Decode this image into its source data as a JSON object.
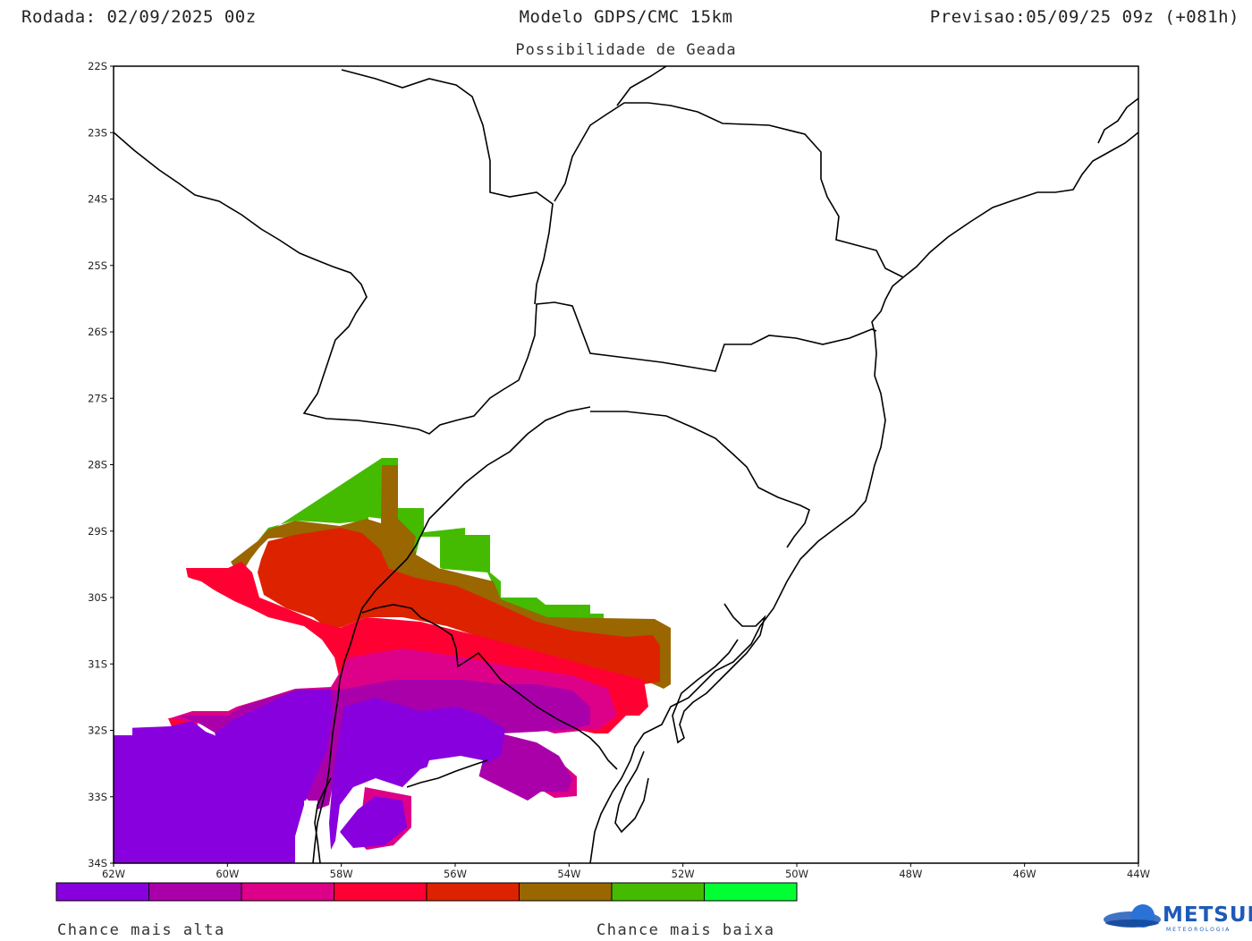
{
  "header": {
    "run": "Rodada: 02/09/2025 00z",
    "model": "Modelo GDPS/CMC 15km",
    "valid": "Previsao:05/09/25 09z (+081h)"
  },
  "product": "Possibilidade de Geada",
  "axes": {
    "lat_ticks": [
      "22S",
      "23S",
      "24S",
      "25S",
      "26S",
      "27S",
      "28S",
      "29S",
      "30S",
      "31S",
      "32S",
      "33S",
      "34S"
    ],
    "lon_ticks": [
      "62W",
      "60W",
      "58W",
      "56W",
      "54W",
      "52W",
      "50W",
      "48W",
      "46W",
      "44W"
    ]
  },
  "legend": {
    "colors": [
      "#8800dd",
      "#aa00aa",
      "#dd0088",
      "#ff0033",
      "#dd2200",
      "#996600",
      "#44bb00",
      "#00ff33"
    ],
    "label_high": "Chance mais alta",
    "label_low": "Chance mais baixa"
  },
  "logo": {
    "name": "METSUL",
    "tagline": "METEOROLOGIA"
  }
}
